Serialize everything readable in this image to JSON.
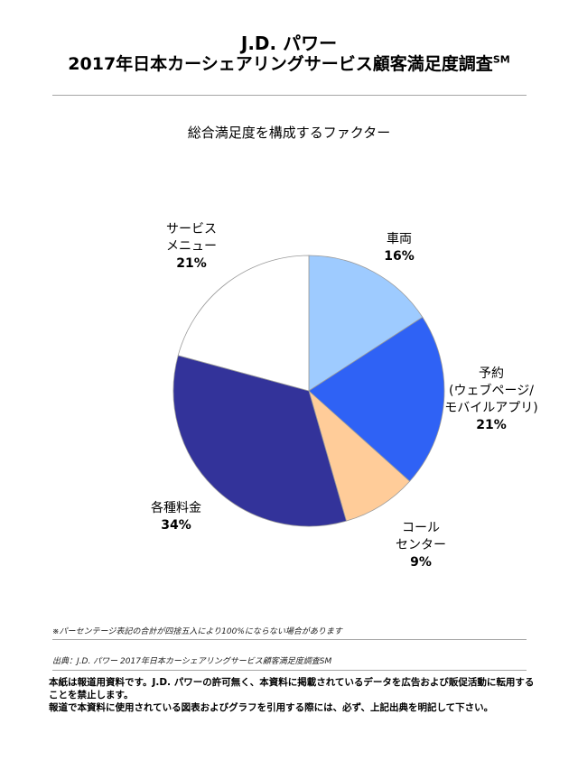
{
  "header": {
    "title": "J.D. パワー",
    "subtitle": "2017年日本カーシェアリングサービス顧客満足度調査",
    "subtitle_mark": "SM"
  },
  "chart_data": {
    "type": "pie",
    "title": "総合満足度を構成するファクター",
    "slices": [
      {
        "label_lines": [
          "車両"
        ],
        "value": 16,
        "value_label": "16%",
        "color": "#9ecbff"
      },
      {
        "label_lines": [
          "予約",
          "(ウェブページ/",
          "モバイルアプリ)"
        ],
        "value": 21,
        "value_label": "21%",
        "color": "#2f62f5"
      },
      {
        "label_lines": [
          "コール",
          "センター"
        ],
        "value": 9,
        "value_label": "9%",
        "color": "#ffcc99"
      },
      {
        "label_lines": [
          "各種料金"
        ],
        "value": 34,
        "value_label": "34%",
        "color": "#33339a"
      },
      {
        "label_lines": [
          "サービス",
          "メニュー"
        ],
        "value": 21,
        "value_label": "21%",
        "color": "#ffffff"
      }
    ]
  },
  "notes": {
    "rounding": "※パーセンテージ表記の合計が四捨五入により100%にならない場合があります",
    "source": "出典：J.D. パワー 2017年日本カーシェアリングサービス顧客満足度調査SM"
  },
  "footer": {
    "line1": "本紙は報道用資料です。J.D. パワーの許可無く、本資料に掲載されているデータを広告および販促活動に転用することを禁止します。",
    "line2": "報道で本資料に使用されている図表およびグラフを引用する際には、必ず、上記出典を明記して下さい。"
  }
}
